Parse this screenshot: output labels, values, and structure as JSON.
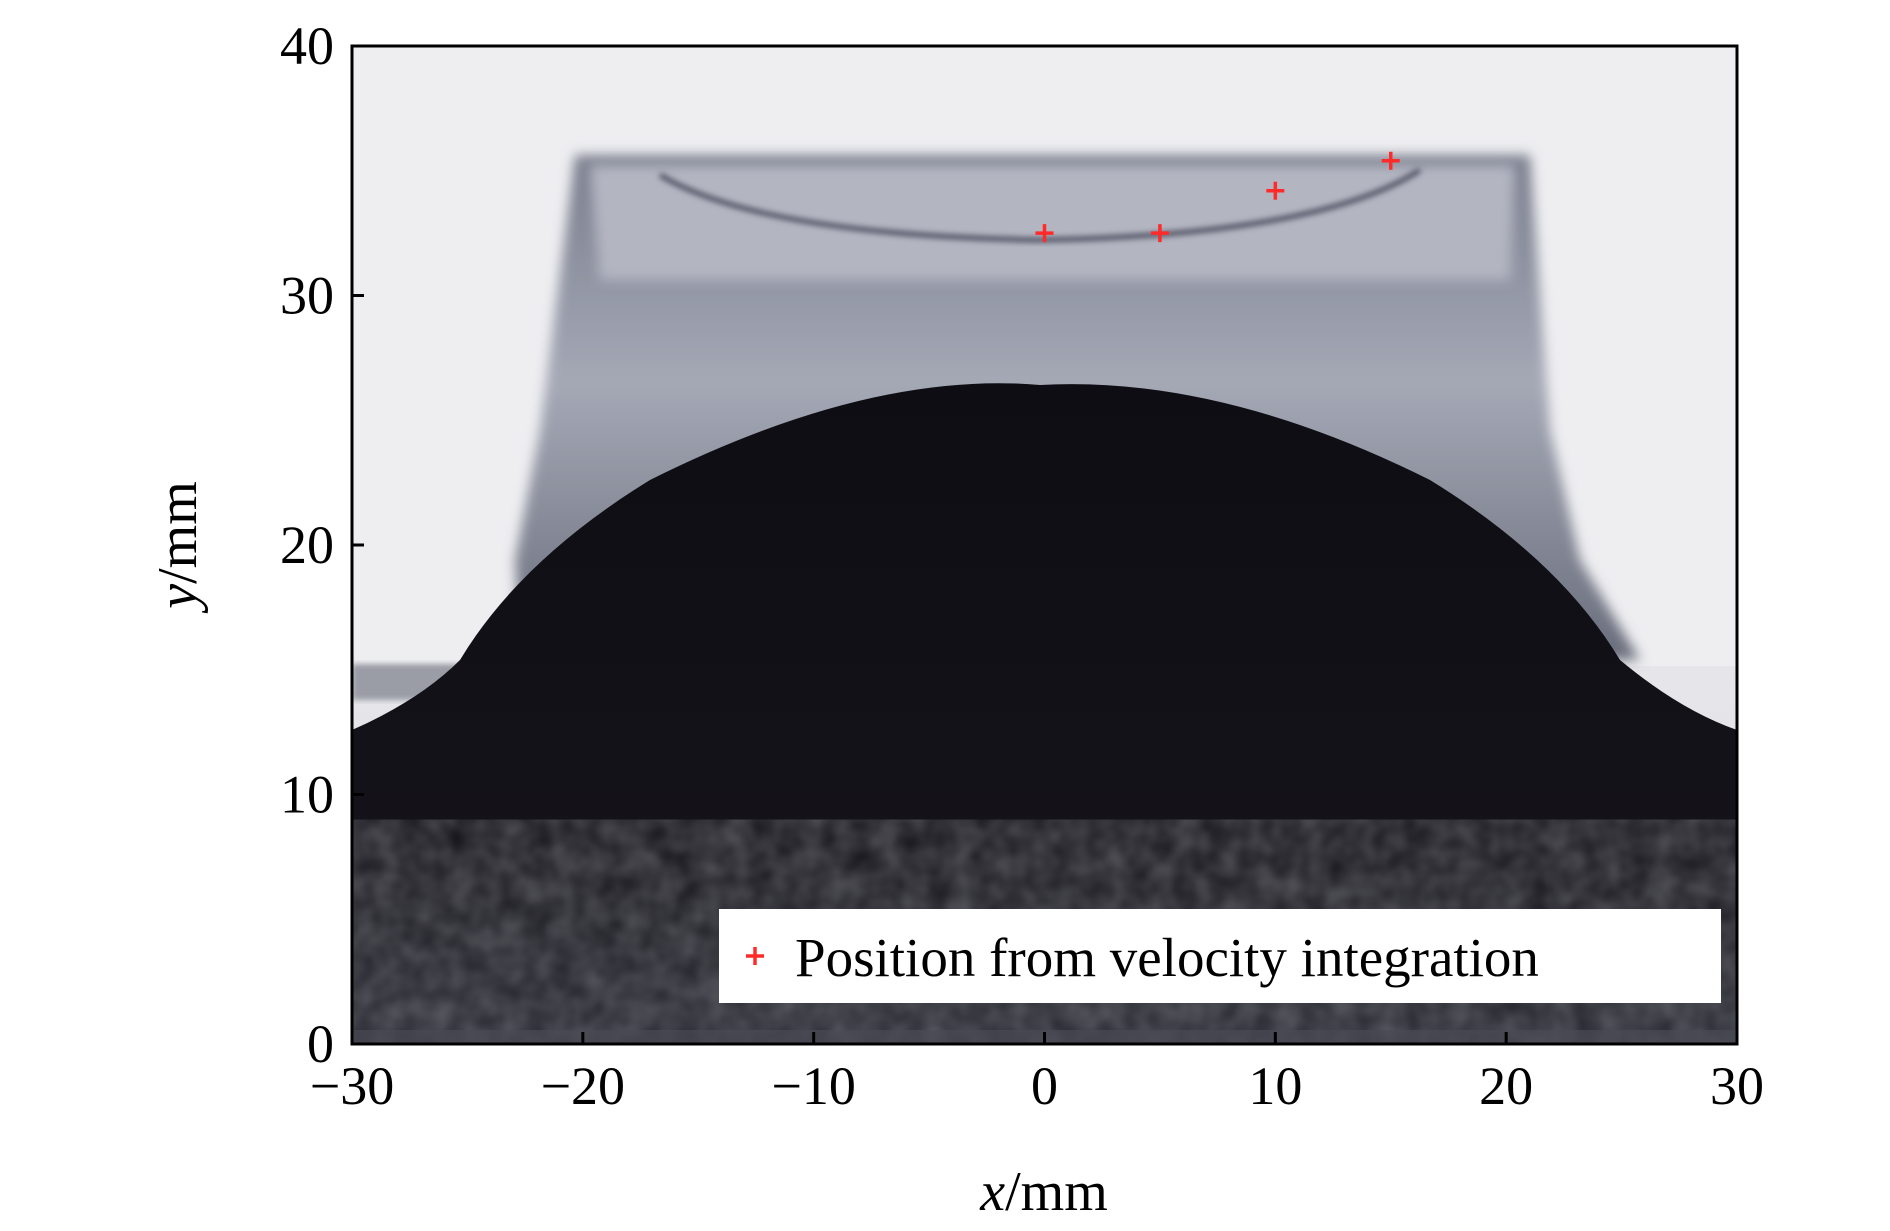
{
  "chart_data": {
    "type": "scatter",
    "title": "",
    "xlabel": {
      "var": "x",
      "unit": "/mm"
    },
    "ylabel": {
      "var": "y",
      "unit": "/mm"
    },
    "xlim": [
      -30,
      30
    ],
    "ylim": [
      0,
      40
    ],
    "xticks": [
      -30,
      -20,
      -10,
      0,
      10,
      20,
      30
    ],
    "yticks": [
      0,
      10,
      20,
      30,
      40
    ],
    "xtick_labels": [
      "−30",
      "−20",
      "−10",
      "0",
      "10",
      "20",
      "30"
    ],
    "ytick_labels": [
      "0",
      "10",
      "20",
      "30",
      "40"
    ],
    "grid": false,
    "legend": {
      "placement": "lower-right",
      "entries": [
        "Position from velocity integration"
      ]
    },
    "background": "grayscale radiograph",
    "series": [
      {
        "name": "Position from velocity integration",
        "marker": "plus",
        "color": "#ff2a2a",
        "x": [
          0,
          5,
          10,
          15
        ],
        "y": [
          32.5,
          32.5,
          34.2,
          35.4
        ]
      }
    ]
  }
}
